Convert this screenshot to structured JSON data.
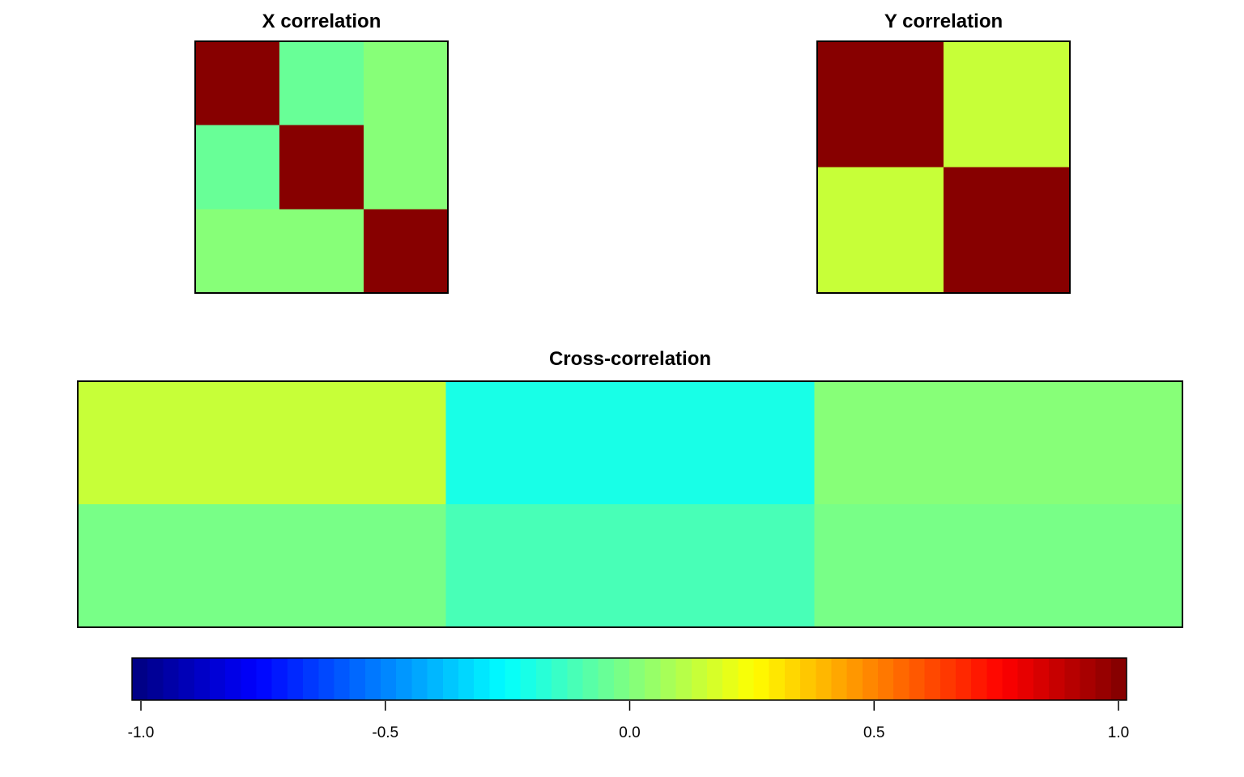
{
  "chart_data": [
    {
      "type": "heatmap",
      "title": "X correlation",
      "rows": 3,
      "cols": 3,
      "values": [
        [
          1.0,
          -0.05,
          0.0
        ],
        [
          -0.05,
          1.0,
          0.0
        ],
        [
          0.0,
          0.0,
          1.0
        ]
      ],
      "zlim": [
        -1,
        1
      ]
    },
    {
      "type": "heatmap",
      "title": "Y correlation",
      "rows": 2,
      "cols": 2,
      "values": [
        [
          1.0,
          0.15
        ],
        [
          0.15,
          1.0
        ]
      ],
      "zlim": [
        -1,
        1
      ]
    },
    {
      "type": "heatmap",
      "title": "Cross-correlation",
      "rows": 2,
      "cols": 3,
      "values": [
        [
          0.15,
          -0.2,
          0.0
        ],
        [
          -0.02,
          -0.1,
          -0.02
        ]
      ],
      "zlim": [
        -1,
        1
      ]
    }
  ],
  "colorbar": {
    "palette": "jet",
    "range": [
      -1.0,
      1.0
    ],
    "n_colors": 64,
    "ticks": [
      -1.0,
      -0.5,
      0.0,
      0.5,
      1.0
    ],
    "tick_labels": [
      "-1.0",
      "-0.5",
      "0.0",
      "0.5",
      "1.0"
    ]
  }
}
